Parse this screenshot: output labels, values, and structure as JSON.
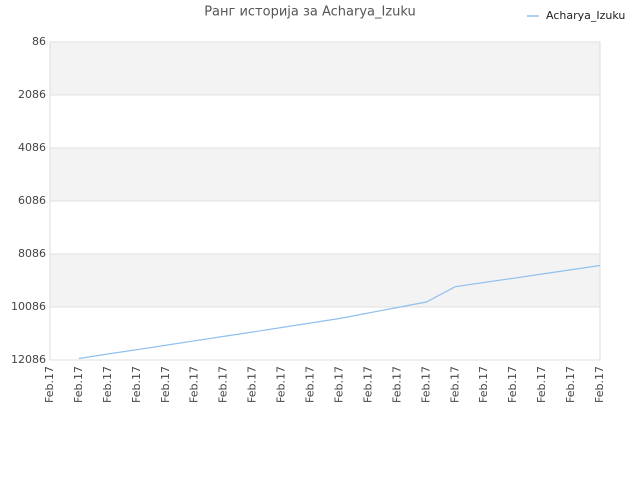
{
  "chart_data": {
    "type": "line",
    "title": "Ранг историја за Acharya_Izuku",
    "categories": [
      "Feb.17",
      "Feb.17",
      "Feb.17",
      "Feb.17",
      "Feb.17",
      "Feb.17",
      "Feb.17",
      "Feb.17",
      "Feb.17",
      "Feb.17",
      "Feb.17",
      "Feb.17",
      "Feb.17",
      "Feb.17",
      "Feb.17",
      "Feb.17",
      "Feb.17",
      "Feb.17",
      "Feb.17",
      "Feb.17"
    ],
    "series": [
      {
        "name": "Acharya_Izuku",
        "color": "#90c0ee",
        "values": [
          null,
          12030,
          11860,
          11697,
          11530,
          11362,
          11195,
          11030,
          10860,
          10690,
          10520,
          10313,
          10105,
          9897,
          9320,
          9160,
          9003,
          8840,
          8680,
          8520
        ]
      }
    ],
    "ylim": [
      86,
      12086
    ],
    "inverted": true,
    "yticks": [
      86,
      2086,
      4086,
      6086,
      8086,
      10086,
      12086
    ],
    "grid": true,
    "legend": "top-right"
  }
}
